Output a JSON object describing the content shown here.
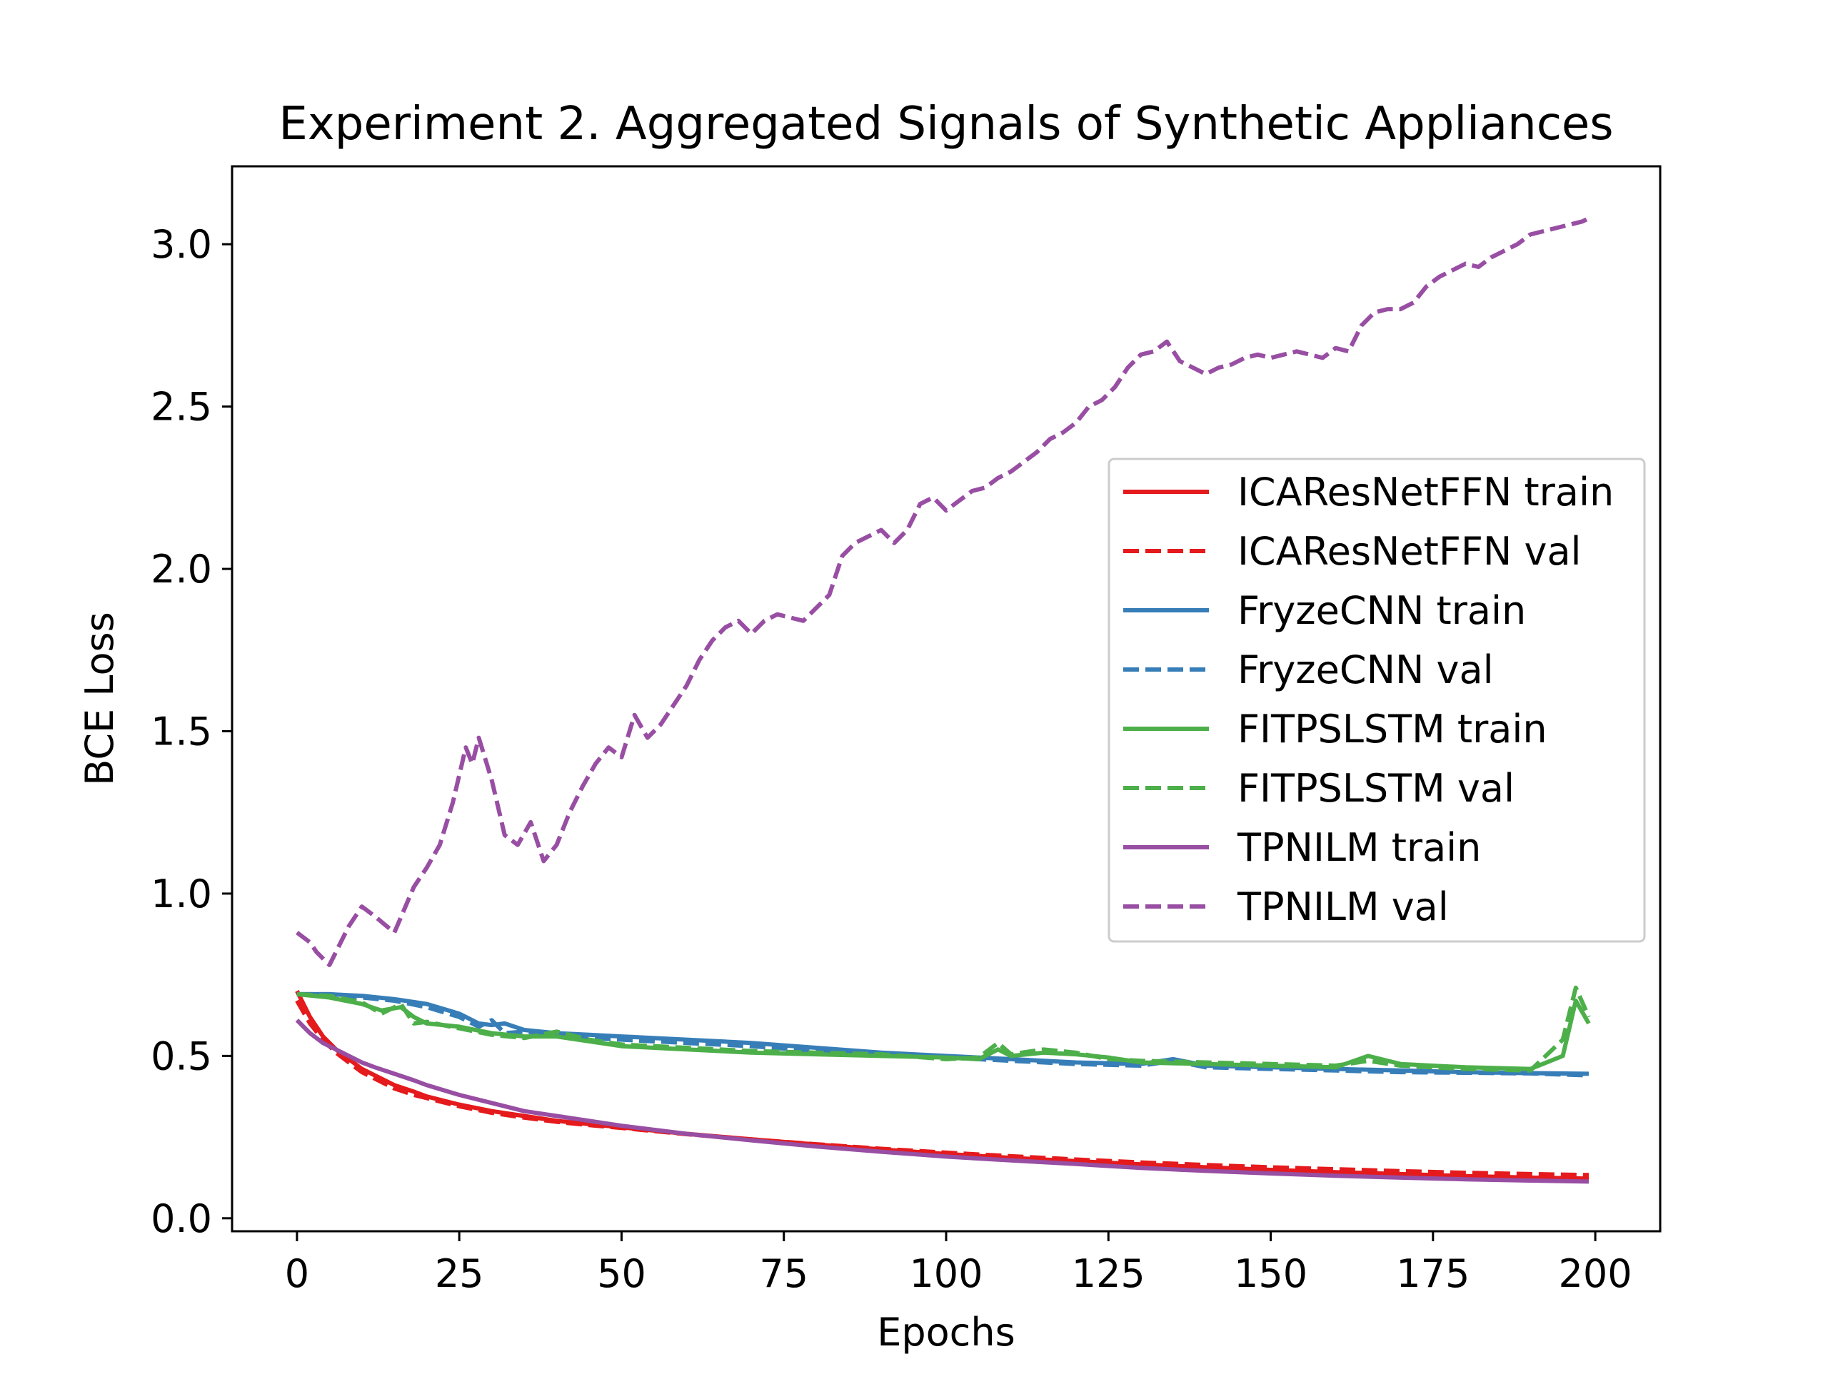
{
  "chart_data": {
    "type": "line",
    "title": "Experiment 2. Aggregated Signals of Synthetic Appliances",
    "xlabel": "Epochs",
    "ylabel": "BCE Loss",
    "xlim": [
      -10,
      210
    ],
    "ylim": [
      -0.04,
      3.24
    ],
    "xticks": [
      0,
      25,
      50,
      75,
      100,
      125,
      150,
      175,
      200
    ],
    "yticks": [
      0.0,
      0.5,
      1.0,
      1.5,
      2.0,
      2.5,
      3.0
    ],
    "xtick_labels": [
      "0",
      "25",
      "50",
      "75",
      "100",
      "125",
      "150",
      "175",
      "200"
    ],
    "ytick_labels": [
      "0.0",
      "0.5",
      "1.0",
      "1.5",
      "2.0",
      "2.5",
      "3.0"
    ],
    "grid": false,
    "legend_position": "center-right",
    "series": [
      {
        "name": "ICAResNetFFN train",
        "color": "#e41a1c",
        "dash": "solid",
        "x": [
          0,
          2,
          4,
          6,
          8,
          10,
          12,
          15,
          18,
          20,
          25,
          30,
          35,
          40,
          45,
          50,
          60,
          70,
          80,
          90,
          100,
          110,
          120,
          130,
          140,
          150,
          160,
          170,
          180,
          190,
          199
        ],
        "y": [
          0.7,
          0.62,
          0.56,
          0.52,
          0.49,
          0.46,
          0.44,
          0.41,
          0.39,
          0.375,
          0.35,
          0.33,
          0.315,
          0.3,
          0.29,
          0.28,
          0.26,
          0.243,
          0.227,
          0.212,
          0.198,
          0.186,
          0.176,
          0.166,
          0.157,
          0.149,
          0.142,
          0.136,
          0.13,
          0.125,
          0.122
        ]
      },
      {
        "name": "ICAResNetFFN val",
        "color": "#e41a1c",
        "dash": "dashed",
        "x": [
          0,
          2,
          4,
          6,
          8,
          10,
          12,
          15,
          18,
          20,
          25,
          30,
          35,
          40,
          45,
          50,
          60,
          70,
          80,
          90,
          100,
          110,
          120,
          130,
          140,
          150,
          160,
          170,
          180,
          190,
          199
        ],
        "y": [
          0.67,
          0.6,
          0.55,
          0.51,
          0.48,
          0.45,
          0.43,
          0.4,
          0.38,
          0.37,
          0.345,
          0.325,
          0.31,
          0.297,
          0.287,
          0.278,
          0.259,
          0.243,
          0.228,
          0.214,
          0.202,
          0.191,
          0.181,
          0.172,
          0.164,
          0.157,
          0.151,
          0.145,
          0.14,
          0.136,
          0.133
        ]
      },
      {
        "name": "FryzeCNN train",
        "color": "#377eb8",
        "dash": "solid",
        "x": [
          0,
          5,
          10,
          15,
          20,
          25,
          28,
          30,
          32,
          35,
          40,
          45,
          50,
          60,
          70,
          80,
          90,
          100,
          110,
          120,
          130,
          135,
          140,
          150,
          160,
          170,
          180,
          190,
          199
        ],
        "y": [
          0.69,
          0.69,
          0.685,
          0.675,
          0.66,
          0.63,
          0.6,
          0.595,
          0.6,
          0.58,
          0.57,
          0.565,
          0.56,
          0.55,
          0.54,
          0.525,
          0.51,
          0.5,
          0.49,
          0.48,
          0.475,
          0.49,
          0.47,
          0.465,
          0.46,
          0.455,
          0.45,
          0.447,
          0.445
        ]
      },
      {
        "name": "FryzeCNN val",
        "color": "#377eb8",
        "dash": "dashed",
        "x": [
          0,
          5,
          10,
          15,
          20,
          25,
          28,
          30,
          32,
          35,
          40,
          45,
          50,
          60,
          70,
          80,
          90,
          100,
          110,
          120,
          130,
          135,
          140,
          150,
          160,
          170,
          180,
          190,
          199
        ],
        "y": [
          0.69,
          0.69,
          0.68,
          0.67,
          0.65,
          0.62,
          0.59,
          0.61,
          0.57,
          0.575,
          0.565,
          0.555,
          0.55,
          0.54,
          0.53,
          0.515,
          0.505,
          0.495,
          0.485,
          0.475,
          0.47,
          0.485,
          0.465,
          0.46,
          0.455,
          0.45,
          0.448,
          0.446,
          0.44
        ]
      },
      {
        "name": "FITPSLSTM train",
        "color": "#4daf4a",
        "dash": "solid",
        "x": [
          0,
          5,
          10,
          13,
          16,
          18,
          20,
          25,
          30,
          35,
          40,
          45,
          50,
          60,
          70,
          80,
          90,
          100,
          105,
          108,
          110,
          115,
          120,
          125,
          130,
          140,
          150,
          160,
          165,
          170,
          180,
          190,
          195,
          197,
          199
        ],
        "y": [
          0.69,
          0.68,
          0.66,
          0.64,
          0.65,
          0.62,
          0.6,
          0.59,
          0.57,
          0.56,
          0.56,
          0.545,
          0.53,
          0.52,
          0.51,
          0.505,
          0.5,
          0.495,
          0.49,
          0.52,
          0.5,
          0.51,
          0.505,
          0.495,
          0.48,
          0.475,
          0.47,
          0.465,
          0.5,
          0.475,
          0.465,
          0.46,
          0.5,
          0.67,
          0.6
        ]
      },
      {
        "name": "FITPSLSTM val",
        "color": "#4daf4a",
        "dash": "dashed",
        "x": [
          0,
          5,
          10,
          13,
          16,
          18,
          20,
          25,
          30,
          35,
          40,
          45,
          50,
          60,
          70,
          80,
          90,
          100,
          105,
          108,
          110,
          115,
          120,
          125,
          130,
          140,
          150,
          160,
          165,
          170,
          180,
          190,
          195,
          197,
          199
        ],
        "y": [
          0.69,
          0.685,
          0.665,
          0.63,
          0.66,
          0.6,
          0.605,
          0.585,
          0.565,
          0.555,
          0.575,
          0.55,
          0.535,
          0.525,
          0.515,
          0.51,
          0.505,
          0.49,
          0.495,
          0.54,
          0.505,
          0.52,
          0.51,
          0.49,
          0.485,
          0.48,
          0.475,
          0.47,
          0.485,
          0.47,
          0.46,
          0.455,
          0.55,
          0.71,
          0.62
        ]
      },
      {
        "name": "TPNILM train",
        "color": "#984ea3",
        "dash": "solid",
        "x": [
          0,
          2,
          4,
          6,
          8,
          10,
          12,
          15,
          18,
          20,
          25,
          30,
          35,
          40,
          45,
          50,
          60,
          70,
          80,
          90,
          100,
          110,
          120,
          130,
          140,
          150,
          160,
          170,
          180,
          190,
          199
        ],
        "y": [
          0.61,
          0.57,
          0.54,
          0.52,
          0.5,
          0.48,
          0.465,
          0.445,
          0.425,
          0.41,
          0.38,
          0.355,
          0.33,
          0.315,
          0.3,
          0.285,
          0.26,
          0.24,
          0.221,
          0.205,
          0.19,
          0.178,
          0.167,
          0.155,
          0.146,
          0.138,
          0.131,
          0.125,
          0.12,
          0.116,
          0.113
        ]
      },
      {
        "name": "TPNILM val",
        "color": "#984ea3",
        "dash": "dashed",
        "x": [
          0,
          2,
          3,
          5,
          8,
          10,
          12,
          15,
          18,
          20,
          22,
          24,
          26,
          27,
          28,
          30,
          32,
          34,
          36,
          38,
          40,
          42,
          44,
          46,
          48,
          50,
          52,
          54,
          56,
          58,
          60,
          62,
          64,
          66,
          68,
          70,
          72,
          74,
          76,
          78,
          80,
          82,
          84,
          86,
          88,
          90,
          92,
          94,
          96,
          98,
          100,
          102,
          104,
          106,
          108,
          110,
          112,
          114,
          116,
          118,
          120,
          122,
          124,
          126,
          128,
          130,
          132,
          134,
          136,
          138,
          140,
          142,
          144,
          146,
          148,
          150,
          152,
          154,
          156,
          158,
          160,
          162,
          164,
          166,
          168,
          170,
          172,
          174,
          176,
          178,
          180,
          182,
          184,
          186,
          188,
          190,
          192,
          194,
          196,
          198,
          199
        ],
        "y": [
          0.88,
          0.85,
          0.82,
          0.78,
          0.9,
          0.96,
          0.93,
          0.88,
          1.02,
          1.08,
          1.15,
          1.28,
          1.45,
          1.4,
          1.48,
          1.35,
          1.18,
          1.15,
          1.22,
          1.1,
          1.15,
          1.25,
          1.33,
          1.4,
          1.45,
          1.42,
          1.55,
          1.48,
          1.52,
          1.58,
          1.64,
          1.72,
          1.78,
          1.82,
          1.84,
          1.8,
          1.84,
          1.86,
          1.85,
          1.84,
          1.88,
          1.92,
          2.04,
          2.08,
          2.1,
          2.12,
          2.08,
          2.12,
          2.2,
          2.22,
          2.18,
          2.21,
          2.24,
          2.25,
          2.28,
          2.3,
          2.33,
          2.36,
          2.4,
          2.42,
          2.45,
          2.5,
          2.52,
          2.56,
          2.62,
          2.66,
          2.67,
          2.7,
          2.64,
          2.62,
          2.6,
          2.62,
          2.63,
          2.65,
          2.66,
          2.65,
          2.66,
          2.67,
          2.66,
          2.65,
          2.68,
          2.67,
          2.75,
          2.79,
          2.8,
          2.8,
          2.82,
          2.87,
          2.9,
          2.92,
          2.94,
          2.93,
          2.96,
          2.98,
          3.0,
          3.03,
          3.04,
          3.05,
          3.06,
          3.07,
          3.08
        ]
      }
    ]
  }
}
